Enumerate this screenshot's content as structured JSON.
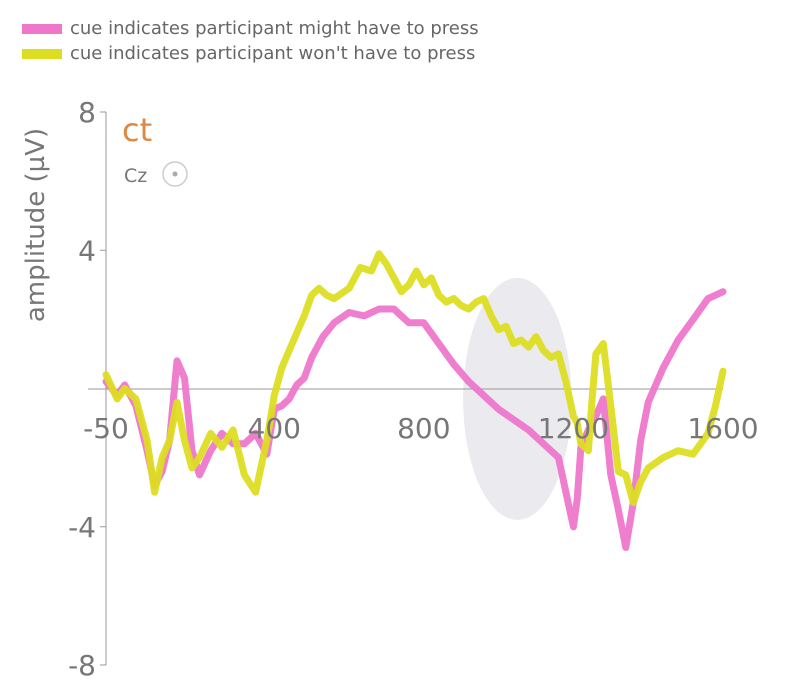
{
  "chart_data": {
    "type": "line",
    "subject": "ct",
    "channel": "Cz",
    "ylabel": "amplitude (µV)",
    "xlabel": "",
    "xlim": [
      -50,
      1600
    ],
    "ylim": [
      -8,
      8
    ],
    "x_ticks": [
      -50,
      400,
      800,
      1200,
      1600
    ],
    "y_ticks": [
      8,
      4,
      -4,
      -8
    ],
    "highlight_region": {
      "x_center": 1050,
      "x_halfwidth": 145,
      "y_center": -0.3,
      "y_halfwidth": 3.5
    },
    "series": [
      {
        "name": "cue indicates participant might have to press",
        "color": "#ee77cc",
        "x": [
          -50,
          -20,
          0,
          30,
          60,
          80,
          100,
          120,
          140,
          160,
          180,
          200,
          230,
          260,
          290,
          320,
          350,
          380,
          400,
          420,
          440,
          460,
          480,
          500,
          530,
          560,
          600,
          640,
          680,
          720,
          760,
          800,
          840,
          880,
          920,
          960,
          1000,
          1040,
          1080,
          1120,
          1160,
          1180,
          1200,
          1210,
          1220,
          1240,
          1260,
          1280,
          1300,
          1320,
          1340,
          1360,
          1380,
          1400,
          1440,
          1480,
          1520,
          1560,
          1580,
          1600
        ],
        "y": [
          0.2,
          -0.2,
          0.1,
          -0.5,
          -1.8,
          -2.8,
          -2.4,
          -1.5,
          0.8,
          0.3,
          -1.8,
          -2.5,
          -1.8,
          -1.3,
          -1.6,
          -1.6,
          -1.3,
          -1.9,
          -0.6,
          -0.5,
          -0.3,
          0.1,
          0.3,
          0.9,
          1.5,
          1.9,
          2.2,
          2.1,
          2.3,
          2.3,
          1.9,
          1.9,
          1.3,
          0.7,
          0.2,
          -0.2,
          -0.6,
          -0.9,
          -1.2,
          -1.6,
          -2.0,
          -3.0,
          -4.0,
          -3.2,
          -1.7,
          -1.2,
          -0.8,
          -0.3,
          -2.5,
          -3.5,
          -4.6,
          -3.3,
          -1.5,
          -0.4,
          0.6,
          1.4,
          2.0,
          2.6,
          2.7,
          2.8
        ]
      },
      {
        "name": "cue indicates participant won't have to press",
        "color": "#dddd22",
        "x": [
          -50,
          -20,
          0,
          30,
          60,
          80,
          100,
          120,
          140,
          160,
          180,
          200,
          230,
          260,
          290,
          320,
          350,
          380,
          400,
          420,
          440,
          460,
          480,
          500,
          520,
          540,
          560,
          600,
          630,
          660,
          680,
          700,
          720,
          740,
          760,
          780,
          800,
          820,
          840,
          860,
          880,
          900,
          920,
          940,
          960,
          980,
          1000,
          1020,
          1040,
          1060,
          1080,
          1100,
          1120,
          1140,
          1160,
          1180,
          1200,
          1210,
          1220,
          1240,
          1250,
          1260,
          1280,
          1300,
          1320,
          1340,
          1360,
          1380,
          1400,
          1440,
          1480,
          1520,
          1560,
          1580,
          1600
        ],
        "y": [
          0.4,
          -0.3,
          0.0,
          -0.3,
          -1.5,
          -3.0,
          -2.0,
          -1.5,
          -0.4,
          -1.5,
          -2.3,
          -2.0,
          -1.3,
          -1.7,
          -1.2,
          -2.5,
          -3.0,
          -1.5,
          -0.2,
          0.6,
          1.1,
          1.6,
          2.1,
          2.7,
          2.9,
          2.7,
          2.6,
          2.9,
          3.5,
          3.4,
          3.9,
          3.6,
          3.2,
          2.8,
          3.0,
          3.4,
          3.0,
          3.2,
          2.7,
          2.5,
          2.6,
          2.4,
          2.3,
          2.5,
          2.6,
          2.1,
          1.7,
          1.8,
          1.3,
          1.4,
          1.2,
          1.5,
          1.1,
          0.9,
          1.0,
          0.2,
          -0.8,
          -1.0,
          -1.6,
          -1.8,
          -0.3,
          1.0,
          1.3,
          -0.5,
          -2.4,
          -2.5,
          -3.3,
          -2.7,
          -2.3,
          -2.0,
          -1.8,
          -1.9,
          -1.3,
          -0.5,
          0.5
        ]
      }
    ]
  }
}
